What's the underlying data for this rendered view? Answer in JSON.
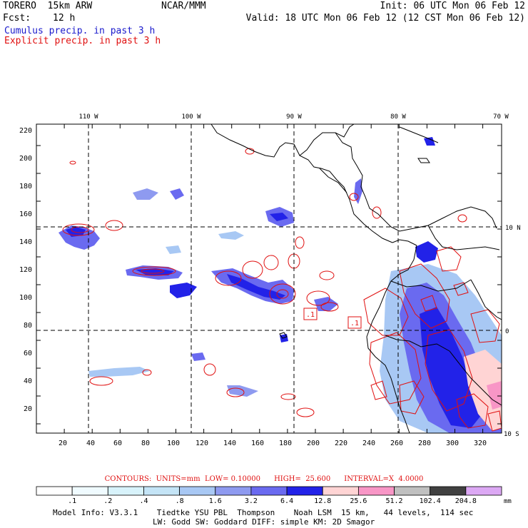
{
  "header": {
    "model": "TORERO  15km ARW",
    "org": "NCAR/MMM",
    "init": "Init: 06 UTC Mon 06 Feb 12",
    "fcst_label": "Fcst:",
    "fcst_value": "12 h",
    "valid": "Valid: 18 UTC Mon 06 Feb 12 (12 CST Mon 06 Feb 12)",
    "field1": "Cumulus precip. in past 3 h",
    "field2": "Explicit precip. in past 3 h"
  },
  "axes": {
    "x_ticks": [
      "20",
      "40",
      "60",
      "80",
      "100",
      "120",
      "140",
      "160",
      "180",
      "200",
      "220",
      "240",
      "260",
      "280",
      "300",
      "320"
    ],
    "y_ticks": [
      "20",
      "40",
      "60",
      "80",
      "100",
      "120",
      "140",
      "160",
      "180",
      "200",
      "220"
    ],
    "lon_labels": [
      "110 W",
      "100 W",
      "90 W",
      "80 W",
      "70 W"
    ],
    "lat_labels": [
      "10 N",
      "0",
      "10 S"
    ]
  },
  "contours_info": "CONTOURS:  UNITS=mm  LOW= 0.10000      HIGH=  25.600      INTERVAL=X  4.0000",
  "colorbar": {
    "labels": [
      ".1",
      ".2",
      ".4",
      ".8",
      "1.6",
      "3.2",
      "6.4",
      "12.8",
      "25.6",
      "51.2",
      "102.4",
      "204.8"
    ],
    "units": "mm",
    "colors": [
      "#ffffff",
      "#f0fbff",
      "#d8f3fb",
      "#c4e4f6",
      "#a8c8f4",
      "#8e9af0",
      "#6a6af0",
      "#2222e8",
      "#ffd4d4",
      "#f896c6",
      "#c0c0c0",
      "#404040",
      "#dca8f4"
    ]
  },
  "footer": {
    "line1": "Model Info: V3.3.1    Tiedtke YSU PBL  Thompson    Noah LSM  15 km,   44 levels,  114 sec",
    "line2": "LW: Godd SW: Goddard DIFF: simple KM: 2D Smagor"
  }
}
